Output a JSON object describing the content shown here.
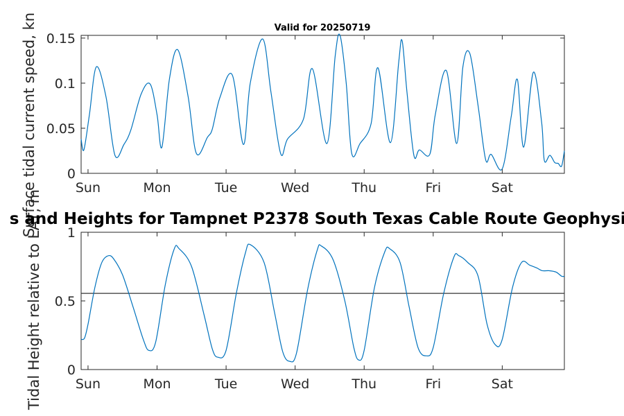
{
  "chart_data": [
    {
      "type": "line",
      "title": "Valid for 20250719",
      "ylabel": "Surface tidal current speed, kn",
      "xlabel": "",
      "xlim": [
        0,
        7
      ],
      "ylim": [
        0,
        0.153
      ],
      "x_ticks": [
        {
          "label": "Sun",
          "value": 0.1
        },
        {
          "label": "Mon",
          "value": 1.1
        },
        {
          "label": "Tue",
          "value": 2.1
        },
        {
          "label": "Wed",
          "value": 3.1
        },
        {
          "label": "Thu",
          "value": 4.1
        },
        {
          "label": "Fri",
          "value": 5.1
        },
        {
          "label": "Sat",
          "value": 6.1
        }
      ],
      "y_ticks": [
        {
          "label": "0",
          "value": 0
        },
        {
          "label": "0.05",
          "value": 0.05
        },
        {
          "label": "0.1",
          "value": 0.1
        },
        {
          "label": "0.15",
          "value": 0.15
        }
      ],
      "grid": false,
      "series": [
        {
          "color": "#0072bd",
          "x": [
            0,
            0.04,
            0.12,
            0.22,
            0.36,
            0.49,
            0.62,
            0.72,
            0.87,
            1.0,
            1.1,
            1.17,
            1.28,
            1.4,
            1.55,
            1.67,
            1.83,
            1.9,
            2.01,
            2.19,
            2.35,
            2.45,
            2.63,
            2.75,
            2.89,
            2.99,
            3.22,
            3.35,
            3.56,
            3.68,
            3.75,
            3.84,
            3.92,
            4.04,
            4.2,
            4.3,
            4.48,
            4.6,
            4.65,
            4.72,
            4.82,
            4.9,
            5.05,
            5.13,
            5.29,
            5.44,
            5.53,
            5.63,
            5.75,
            5.86,
            5.94,
            6.1,
            6.23,
            6.32,
            6.41,
            6.55,
            6.67,
            6.71,
            6.79,
            6.86,
            6.91,
            6.96,
            7.0
          ],
          "values": [
            0.038,
            0.026,
            0.065,
            0.118,
            0.085,
            0.02,
            0.032,
            0.048,
            0.088,
            0.099,
            0.065,
            0.029,
            0.105,
            0.137,
            0.085,
            0.022,
            0.04,
            0.049,
            0.084,
            0.109,
            0.032,
            0.1,
            0.149,
            0.09,
            0.022,
            0.038,
            0.06,
            0.116,
            0.033,
            0.13,
            0.153,
            0.1,
            0.022,
            0.033,
            0.055,
            0.117,
            0.034,
            0.123,
            0.147,
            0.09,
            0.02,
            0.026,
            0.021,
            0.065,
            0.114,
            0.033,
            0.118,
            0.133,
            0.075,
            0.015,
            0.021,
            0.005,
            0.063,
            0.104,
            0.029,
            0.112,
            0.057,
            0.014,
            0.02,
            0.012,
            0.011,
            0.008,
            0.025
          ]
        }
      ]
    },
    {
      "type": "line",
      "title": "s and Heights for Tampnet P2378 South Texas Cable Route Geophysic",
      "ylabel": "Tidal Height relative to LAT, m",
      "xlabel": "",
      "xlim": [
        0,
        7
      ],
      "ylim": [
        0,
        1
      ],
      "x_ticks": [
        {
          "label": "Sun",
          "value": 0.1
        },
        {
          "label": "Mon",
          "value": 1.1
        },
        {
          "label": "Tue",
          "value": 2.1
        },
        {
          "label": "Wed",
          "value": 3.1
        },
        {
          "label": "Thu",
          "value": 4.1
        },
        {
          "label": "Fri",
          "value": 5.1
        },
        {
          "label": "Sat",
          "value": 6.1
        }
      ],
      "y_ticks": [
        {
          "label": "0",
          "value": 0
        },
        {
          "label": "0.5",
          "value": 0.5
        },
        {
          "label": "1",
          "value": 1
        }
      ],
      "grid": false,
      "reference_line": {
        "y": 0.555,
        "color": "#333333"
      },
      "series": [
        {
          "color": "#0072bd",
          "x": [
            0,
            0.05,
            0.1,
            0.2,
            0.3,
            0.4,
            0.48,
            0.6,
            0.75,
            0.9,
            0.98,
            1.08,
            1.22,
            1.35,
            1.42,
            1.6,
            1.78,
            1.9,
            1.98,
            2.1,
            2.25,
            2.38,
            2.45,
            2.65,
            2.8,
            2.92,
            3.02,
            3.12,
            3.28,
            3.42,
            3.48,
            3.65,
            3.82,
            3.95,
            4.02,
            4.1,
            4.25,
            4.4,
            4.47,
            4.62,
            4.75,
            4.88,
            5.0,
            5.1,
            5.25,
            5.4,
            5.47,
            5.6,
            5.75,
            5.88,
            6.0,
            6.1,
            6.25,
            6.38,
            6.5,
            6.6,
            6.68,
            6.78,
            6.88,
            6.96,
            7.0
          ],
          "values": [
            0.22,
            0.23,
            0.33,
            0.6,
            0.78,
            0.83,
            0.8,
            0.69,
            0.46,
            0.22,
            0.14,
            0.2,
            0.62,
            0.88,
            0.88,
            0.75,
            0.4,
            0.15,
            0.09,
            0.14,
            0.56,
            0.85,
            0.91,
            0.78,
            0.42,
            0.13,
            0.06,
            0.12,
            0.58,
            0.87,
            0.9,
            0.8,
            0.5,
            0.16,
            0.07,
            0.14,
            0.6,
            0.86,
            0.88,
            0.78,
            0.46,
            0.16,
            0.1,
            0.16,
            0.55,
            0.82,
            0.83,
            0.78,
            0.68,
            0.33,
            0.18,
            0.22,
            0.6,
            0.78,
            0.76,
            0.74,
            0.72,
            0.72,
            0.71,
            0.68,
            0.68
          ]
        }
      ]
    }
  ],
  "colors": {
    "axes": "#262626",
    "line": "#0072bd",
    "reference": "#333333"
  }
}
